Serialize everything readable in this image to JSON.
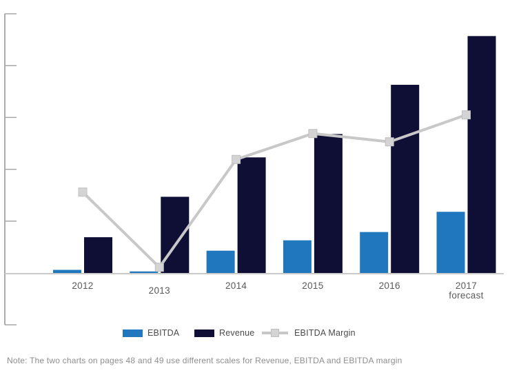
{
  "note": "Note: The two charts on pages 48 and 49 use different scales for Revenue, EBITDA and EBITDA margin",
  "colors": {
    "ebitda_blue": "#2077be",
    "revenue_navy": "#0f0f36",
    "margin_line_gray": "#c8c8c8",
    "marker_fill": "#d4d4d4",
    "marker_border": "#bfbfbf",
    "axis_gray": "#8f8f8f",
    "tick_gray": "#a6a6a6",
    "baseline_gray": "#c9c9c9",
    "label_text": "#5a5a5a"
  },
  "legend": {
    "items": [
      {
        "label": "EBITDA",
        "swatch": "square",
        "color": "#2077be"
      },
      {
        "label": "Revenue",
        "swatch": "square",
        "color": "#0f0f36"
      },
      {
        "label": "EBITDA Margin",
        "swatch": "line-marker",
        "color": "#c8c8c8"
      }
    ]
  },
  "chart_data": {
    "type": "bar",
    "subtype": "clustered bars with overlaid line",
    "title": "",
    "xlabel": "",
    "ylabel": "",
    "categories": [
      "2012",
      "2013",
      "2014",
      "2015",
      "2016",
      "2017\nforecast"
    ],
    "series": [
      {
        "name": "EBITDA",
        "type": "bar",
        "color": "#2077be",
        "values": [
          0.06,
          0.03,
          0.43,
          0.63,
          0.79,
          1.18
        ]
      },
      {
        "name": "Revenue",
        "type": "bar",
        "color": "#0f0f36",
        "values": [
          0.69,
          1.47,
          2.23,
          2.68,
          3.63,
          4.57
        ]
      },
      {
        "name": "EBITDA Margin",
        "type": "line",
        "color": "#c8c8c8",
        "marker": "square",
        "marker_color": "#d4d4d4",
        "values": [
          1.56,
          0.11,
          2.19,
          2.69,
          2.53,
          3.05
        ]
      }
    ],
    "ylim": [
      -1,
      5
    ],
    "y_tick_interval": 1,
    "y_tick_labels_shown": false,
    "value_units": "relative gridline intervals (axis has no numeric labels)",
    "grid": false,
    "legend_position": "bottom",
    "staggered_label_index": 1
  }
}
